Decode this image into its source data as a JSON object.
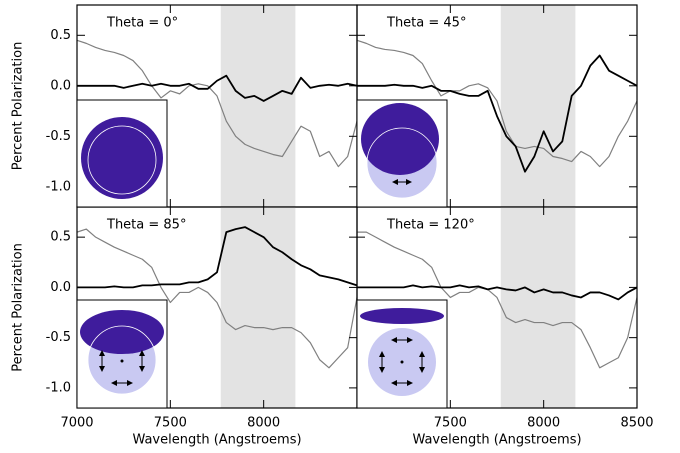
{
  "chart_data": [
    {
      "type": "line",
      "title": "Theta = 0°",
      "ylabel": "Percent Polarization",
      "x": [
        7000,
        7050,
        7100,
        7150,
        7200,
        7250,
        7300,
        7350,
        7400,
        7450,
        7500,
        7550,
        7600,
        7650,
        7700,
        7750,
        7800,
        7850,
        7900,
        7950,
        8000,
        8050,
        8100,
        8150,
        8200,
        8250,
        8300,
        8350,
        8400,
        8450,
        8500
      ],
      "span": [
        7770,
        8170
      ],
      "span_color": "#e3e3e3",
      "series": [
        {
          "color": "#808080",
          "values": [
            0.45,
            0.42,
            0.38,
            0.35,
            0.33,
            0.3,
            0.25,
            0.15,
            0.0,
            -0.12,
            -0.05,
            -0.08,
            0.0,
            0.02,
            0.0,
            -0.1,
            -0.35,
            -0.5,
            -0.58,
            -0.62,
            -0.65,
            -0.68,
            -0.7,
            -0.55,
            -0.4,
            -0.45,
            -0.7,
            -0.65,
            -0.8,
            -0.7,
            -0.35
          ]
        },
        {
          "color": "#000000",
          "values": [
            0,
            0,
            0,
            0,
            0,
            -0.02,
            0,
            0.02,
            0,
            0.02,
            0,
            0,
            0.02,
            -0.03,
            -0.03,
            0.05,
            0.1,
            -0.05,
            -0.12,
            -0.1,
            -0.15,
            -0.1,
            -0.05,
            -0.08,
            0.08,
            -0.02,
            0,
            0.01,
            0,
            0.02,
            0
          ]
        }
      ],
      "xlim": [
        7000,
        8500
      ],
      "ylim": [
        -1.2,
        0.8
      ],
      "xticks": [
        7000,
        7500,
        8000
      ],
      "yticks": [
        0.5,
        {
          "value": 0,
          "label": "0.0"
        },
        -0.5,
        {
          "value": -1,
          "label": "-1.0"
        }
      ]
    },
    {
      "type": "line",
      "title": "Theta = 45°",
      "x": [
        7000,
        7050,
        7100,
        7150,
        7200,
        7250,
        7300,
        7350,
        7400,
        7450,
        7500,
        7550,
        7600,
        7650,
        7700,
        7750,
        7800,
        7850,
        7900,
        7950,
        8000,
        8050,
        8100,
        8150,
        8200,
        8250,
        8300,
        8350,
        8400,
        8450,
        8500
      ],
      "span": [
        7770,
        8170
      ],
      "span_color": "#e3e3e3",
      "series": [
        {
          "color": "#808080",
          "values": [
            0.45,
            0.42,
            0.38,
            0.36,
            0.35,
            0.33,
            0.3,
            0.22,
            0.05,
            -0.1,
            -0.05,
            -0.05,
            0.0,
            0.02,
            -0.02,
            -0.15,
            -0.45,
            -0.6,
            -0.62,
            -0.6,
            -0.62,
            -0.7,
            -0.72,
            -0.75,
            -0.65,
            -0.7,
            -0.8,
            -0.7,
            -0.5,
            -0.35,
            -0.15
          ]
        },
        {
          "color": "#000000",
          "values": [
            0,
            0,
            0,
            0,
            0.01,
            0,
            0,
            -0.02,
            0,
            -0.05,
            -0.05,
            -0.08,
            -0.1,
            -0.1,
            -0.05,
            -0.3,
            -0.5,
            -0.6,
            -0.85,
            -0.7,
            -0.45,
            -0.65,
            -0.55,
            -0.1,
            0.0,
            0.2,
            0.3,
            0.15,
            0.1,
            0.05,
            0.0
          ]
        }
      ],
      "xlim": [
        7000,
        8500
      ],
      "ylim": [
        -1.2,
        0.8
      ],
      "xticks": [
        7500,
        8000,
        8500
      ],
      "yticks": [
        0.5,
        {
          "value": 0,
          "label": "0.0"
        },
        -0.5,
        {
          "value": -1,
          "label": "-1.0"
        }
      ]
    },
    {
      "type": "line",
      "title": "Theta = 85°",
      "ylabel": "Percent Polarization",
      "xlabel": "Wavelength (Angstroems)",
      "x": [
        7000,
        7050,
        7100,
        7150,
        7200,
        7250,
        7300,
        7350,
        7400,
        7450,
        7500,
        7550,
        7600,
        7650,
        7700,
        7750,
        7800,
        7850,
        7900,
        7950,
        8000,
        8050,
        8100,
        8150,
        8200,
        8250,
        8300,
        8350,
        8400,
        8450,
        8500
      ],
      "span": [
        7770,
        8170
      ],
      "span_color": "#e3e3e3",
      "series": [
        {
          "color": "#808080",
          "values": [
            0.55,
            0.58,
            0.5,
            0.45,
            0.4,
            0.36,
            0.32,
            0.28,
            0.2,
            0.0,
            -0.15,
            -0.05,
            -0.05,
            0.0,
            -0.05,
            -0.15,
            -0.35,
            -0.42,
            -0.38,
            -0.4,
            -0.4,
            -0.42,
            -0.4,
            -0.4,
            -0.45,
            -0.55,
            -0.72,
            -0.8,
            -0.7,
            -0.6,
            -0.1
          ]
        },
        {
          "color": "#000000",
          "values": [
            0,
            0,
            0,
            0,
            0.01,
            0,
            0,
            0.02,
            0.02,
            0.03,
            0.03,
            0.03,
            0.05,
            0.05,
            0.08,
            0.15,
            0.55,
            0.58,
            0.6,
            0.55,
            0.5,
            0.4,
            0.35,
            0.28,
            0.22,
            0.18,
            0.12,
            0.1,
            0.08,
            0.05,
            0.02
          ]
        }
      ],
      "xlim": [
        7000,
        8500
      ],
      "ylim": [
        -1.2,
        0.8
      ],
      "xticks": [
        7000,
        7500,
        8000
      ],
      "yticks": [
        0.5,
        {
          "value": 0,
          "label": "0.0"
        },
        -0.5,
        {
          "value": -1,
          "label": "-1.0"
        }
      ]
    },
    {
      "type": "line",
      "title": "Theta = 120°",
      "xlabel": "Wavelength (Angstroems)",
      "x": [
        7000,
        7050,
        7100,
        7150,
        7200,
        7250,
        7300,
        7350,
        7400,
        7450,
        7500,
        7550,
        7600,
        7650,
        7700,
        7750,
        7800,
        7850,
        7900,
        7950,
        8000,
        8050,
        8100,
        8150,
        8200,
        8250,
        8300,
        8350,
        8400,
        8450,
        8500
      ],
      "span": [
        7770,
        8170
      ],
      "span_color": "#e3e3e3",
      "series": [
        {
          "color": "#808080",
          "values": [
            0.55,
            0.55,
            0.5,
            0.45,
            0.4,
            0.36,
            0.32,
            0.28,
            0.2,
            0.0,
            -0.1,
            -0.05,
            -0.05,
            0.0,
            -0.02,
            -0.1,
            -0.3,
            -0.35,
            -0.32,
            -0.35,
            -0.35,
            -0.38,
            -0.35,
            -0.35,
            -0.42,
            -0.6,
            -0.8,
            -0.75,
            -0.7,
            -0.5,
            -0.1
          ]
        },
        {
          "color": "#000000",
          "values": [
            0,
            0,
            0,
            0,
            0,
            0,
            0.02,
            0,
            0.01,
            0,
            0,
            0.02,
            0,
            0.01,
            -0.02,
            0,
            -0.02,
            -0.03,
            0,
            -0.05,
            -0.02,
            -0.05,
            -0.05,
            -0.08,
            -0.1,
            -0.05,
            -0.05,
            -0.08,
            -0.12,
            -0.05,
            0
          ]
        }
      ],
      "xlim": [
        7000,
        8500
      ],
      "ylim": [
        -1.2,
        0.8
      ],
      "xticks": [
        7500,
        8000,
        8500
      ],
      "yticks": [
        0.5,
        {
          "value": 0,
          "label": "0.0"
        },
        -0.5,
        {
          "value": -1,
          "label": "-1.0"
        }
      ]
    }
  ]
}
